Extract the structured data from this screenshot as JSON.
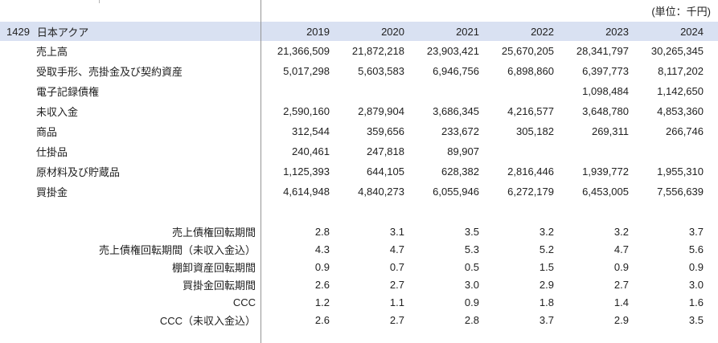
{
  "unit_note": "(単位：千円)",
  "header": {
    "code": "1429",
    "company": "日本アクア",
    "years": [
      "2019",
      "2020",
      "2021",
      "2022",
      "2023",
      "2024"
    ]
  },
  "financial_rows": [
    {
      "label": "売上高",
      "values": [
        "21,366,509",
        "21,872,218",
        "23,903,421",
        "25,670,205",
        "28,341,797",
        "30,265,345"
      ]
    },
    {
      "label": "受取手形、売掛金及び契約資産",
      "values": [
        "5,017,298",
        "5,603,583",
        "6,946,756",
        "6,898,860",
        "6,397,773",
        "8,117,202"
      ]
    },
    {
      "label": "電子記録債権",
      "values": [
        "",
        "",
        "",
        "",
        "1,098,484",
        "1,142,650"
      ]
    },
    {
      "label": "未収入金",
      "values": [
        "2,590,160",
        "2,879,904",
        "3,686,345",
        "4,216,577",
        "3,648,780",
        "4,853,360"
      ]
    },
    {
      "label": "商品",
      "values": [
        "312,544",
        "359,656",
        "233,672",
        "305,182",
        "269,311",
        "266,746"
      ]
    },
    {
      "label": "仕掛品",
      "values": [
        "240,461",
        "247,818",
        "89,907",
        "",
        "",
        ""
      ]
    },
    {
      "label": "原材料及び貯蔵品",
      "values": [
        "1,125,393",
        "644,105",
        "628,382",
        "2,816,446",
        "1,939,772",
        "1,955,310"
      ]
    },
    {
      "label": "買掛金",
      "values": [
        "4,614,948",
        "4,840,273",
        "6,055,946",
        "6,272,179",
        "6,453,005",
        "7,556,639"
      ]
    }
  ],
  "ratio_rows": [
    {
      "label": "売上債権回転期間",
      "values": [
        "2.8",
        "3.1",
        "3.5",
        "3.2",
        "3.2",
        "3.7"
      ]
    },
    {
      "label": "売上債権回転期間（未収入金込）",
      "values": [
        "4.3",
        "4.7",
        "5.3",
        "5.2",
        "4.7",
        "5.6"
      ]
    },
    {
      "label": "棚卸資産回転期間",
      "values": [
        "0.9",
        "0.7",
        "0.5",
        "1.5",
        "0.9",
        "0.9"
      ]
    },
    {
      "label": "買掛金回転期間",
      "values": [
        "2.6",
        "2.7",
        "3.0",
        "2.9",
        "2.7",
        "3.0"
      ]
    },
    {
      "label": "CCC",
      "values": [
        "1.2",
        "1.1",
        "0.9",
        "1.8",
        "1.4",
        "1.6"
      ]
    },
    {
      "label": "CCC（未収入金込）",
      "values": [
        "2.6",
        "2.7",
        "2.8",
        "3.7",
        "2.9",
        "3.5"
      ]
    }
  ],
  "colors": {
    "header_bg": "#D9E1F2",
    "divider": "#949494",
    "text": "#212121",
    "background": "#FFFFFF"
  }
}
